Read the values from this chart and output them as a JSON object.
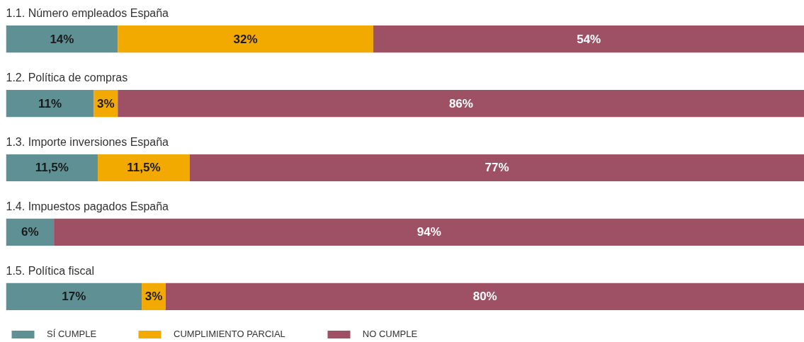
{
  "chart_data": {
    "type": "bar",
    "orientation": "horizontal",
    "stacked": true,
    "categories": [
      "1.1. Número empleados España",
      "1.2. Política de compras",
      "1.3. Importe inversiones España",
      "1.4. Impuestos pagados España",
      "1.5. Política fiscal"
    ],
    "series": [
      {
        "name": "SÍ CUMPLE",
        "color": "#5f9093",
        "values": [
          14,
          11,
          11.5,
          6,
          17
        ],
        "value_labels": [
          "14%",
          "11%",
          "11,5%",
          "6%",
          "17%"
        ]
      },
      {
        "name": "CUMPLIMIENTO PARCIAL",
        "color": "#f2a900",
        "values": [
          32,
          3,
          11.5,
          0,
          3
        ],
        "value_labels": [
          "32%",
          "3%",
          "11,5%",
          null,
          "3%"
        ]
      },
      {
        "name": "NO CUMPLE",
        "color": "#9e5064",
        "values": [
          54,
          86,
          77,
          94,
          80
        ],
        "value_labels": [
          "54%",
          "86%",
          "77%",
          "94%",
          "80%"
        ]
      }
    ],
    "xlim": [
      0,
      100
    ],
    "tick_labels": false,
    "grid": false,
    "legend": "bottom left"
  }
}
